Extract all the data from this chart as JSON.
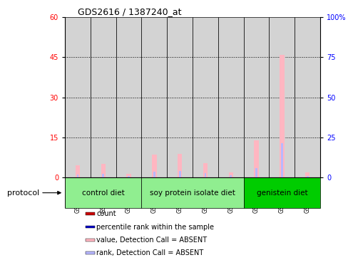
{
  "title": "GDS2616 / 1387240_at",
  "samples": [
    "GSM158579",
    "GSM158580",
    "GSM158581",
    "GSM158582",
    "GSM158583",
    "GSM158584",
    "GSM158585",
    "GSM158586",
    "GSM158587",
    "GSM158588"
  ],
  "value_absent": [
    4.5,
    5.2,
    1.3,
    8.5,
    8.8,
    5.5,
    2.0,
    14.0,
    46.0,
    2.0
  ],
  "rank_absent": [
    1.2,
    1.5,
    0.5,
    2.2,
    2.5,
    1.8,
    0.8,
    3.5,
    13.0,
    0.7
  ],
  "left_ylim": [
    0,
    60
  ],
  "left_yticks": [
    0,
    15,
    30,
    45,
    60
  ],
  "right_ylim": [
    0,
    100
  ],
  "right_yticks": [
    0,
    25,
    50,
    75,
    100
  ],
  "right_yticklabels": [
    "0",
    "25",
    "50",
    "75",
    "100%"
  ],
  "bar_color_absent_value": "#ffb6c1",
  "bar_color_absent_rank": "#b8b8ff",
  "bar_color_present_count": "#cc0000",
  "bar_color_present_rank": "#0000cc",
  "col_bg_color": "#d3d3d3",
  "group_data": [
    {
      "label": "control diet",
      "start": 0,
      "end": 2,
      "color": "#90ee90"
    },
    {
      "label": "soy protein isolate diet",
      "start": 3,
      "end": 6,
      "color": "#90ee90"
    },
    {
      "label": "genistein diet",
      "start": 7,
      "end": 9,
      "color": "#00cc00"
    }
  ],
  "legend_items": [
    {
      "label": "count",
      "color": "#cc0000"
    },
    {
      "label": "percentile rank within the sample",
      "color": "#0000cc"
    },
    {
      "label": "value, Detection Call = ABSENT",
      "color": "#ffb6c1"
    },
    {
      "label": "rank, Detection Call = ABSENT",
      "color": "#b8b8ff"
    }
  ]
}
